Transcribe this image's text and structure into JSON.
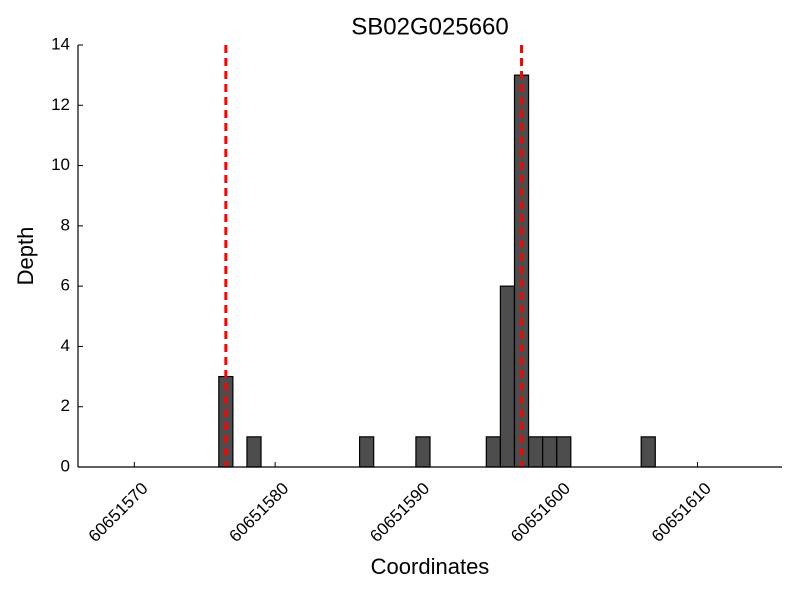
{
  "chart_data": {
    "type": "histogram",
    "title": "SB02G025660",
    "xlabel": "Coordinates",
    "ylabel": "Depth",
    "bins": [
      60651576,
      60651577,
      60651578,
      60651579,
      60651580,
      60651581,
      60651582,
      60651583,
      60651584,
      60651585,
      60651586,
      60651587,
      60651588,
      60651589,
      60651590,
      60651591,
      60651592,
      60651593,
      60651594,
      60651595,
      60651596,
      60651597,
      60651598,
      60651599,
      60651600,
      60651601,
      60651602,
      60651603,
      60651604,
      60651605,
      60651606,
      60651607
    ],
    "counts": [
      3,
      0,
      1,
      0,
      0,
      0,
      0,
      0,
      0,
      0,
      1,
      0,
      0,
      0,
      1,
      0,
      0,
      0,
      0,
      1,
      6,
      13,
      1,
      1,
      1,
      0,
      0,
      0,
      0,
      0,
      1
    ],
    "color": "#4d4d4d",
    "vlines": [
      60651576.5,
      60651597.5
    ],
    "vline_color": "#ff0000",
    "xlim": [
      60651566,
      60651616
    ],
    "xticks": [
      60651570,
      60651580,
      60651590,
      60651600,
      60651610
    ],
    "ylim": [
      0,
      14
    ],
    "yticks": [
      0,
      2,
      4,
      6,
      8,
      10,
      12,
      14
    ]
  }
}
